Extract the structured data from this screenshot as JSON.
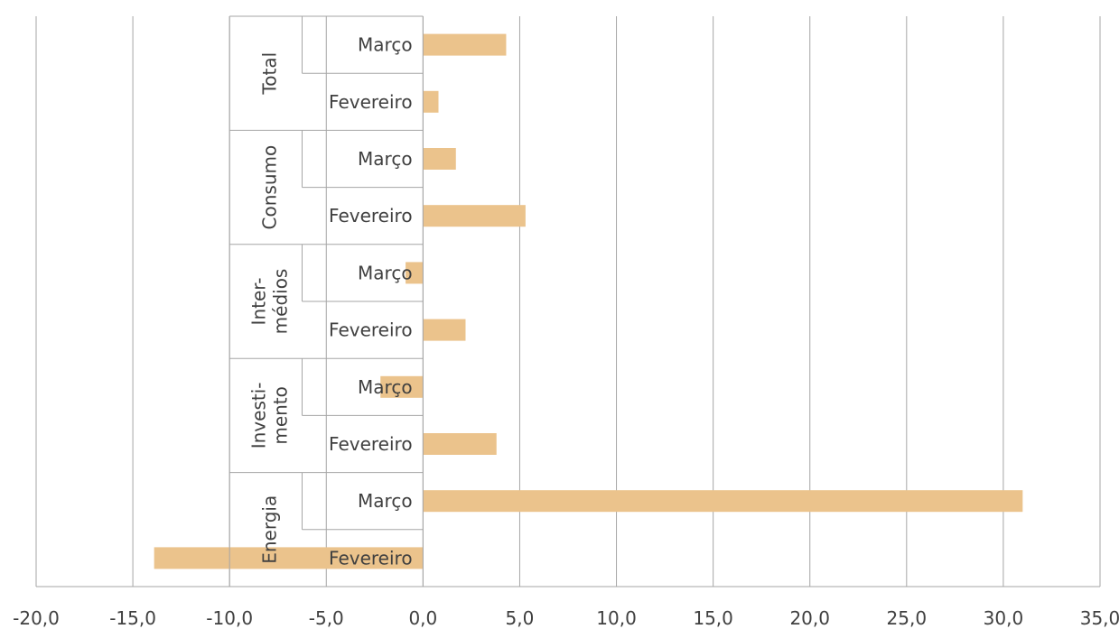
{
  "chart_data": {
    "type": "bar",
    "orientation": "horizontal",
    "title": "",
    "xlabel": "",
    "ylabel": "",
    "xlim": [
      -20,
      35
    ],
    "x_ticks": [
      -20,
      -15,
      -10,
      -5,
      0,
      5,
      10,
      15,
      20,
      25,
      30,
      35
    ],
    "x_tick_labels": [
      "-20,0",
      "-15,0",
      "-10,0",
      "-5,0",
      "0,0",
      "5,0",
      "10,0",
      "15,0",
      "20,0",
      "25,0",
      "30,0",
      "35,0"
    ],
    "grid": "vertical",
    "bar_color": "#EBC38C",
    "groups": [
      {
        "label": [
          "Total"
        ],
        "categories": [
          "Março",
          "Fevereiro"
        ],
        "values": [
          4.3,
          0.8
        ]
      },
      {
        "label": [
          "Consumo"
        ],
        "categories": [
          "Março",
          "Fevereiro"
        ],
        "values": [
          1.7,
          5.3
        ]
      },
      {
        "label": [
          "Inter-",
          "médios"
        ],
        "categories": [
          "Março",
          "Fevereiro"
        ],
        "values": [
          -0.9,
          2.2
        ]
      },
      {
        "label": [
          "Investi-",
          "mento"
        ],
        "categories": [
          "Março",
          "Fevereiro"
        ],
        "values": [
          -2.2,
          3.8
        ]
      },
      {
        "label": [
          "Energia"
        ],
        "categories": [
          "Março",
          "Fevereiro"
        ],
        "values": [
          31.0,
          -13.9
        ]
      }
    ]
  }
}
